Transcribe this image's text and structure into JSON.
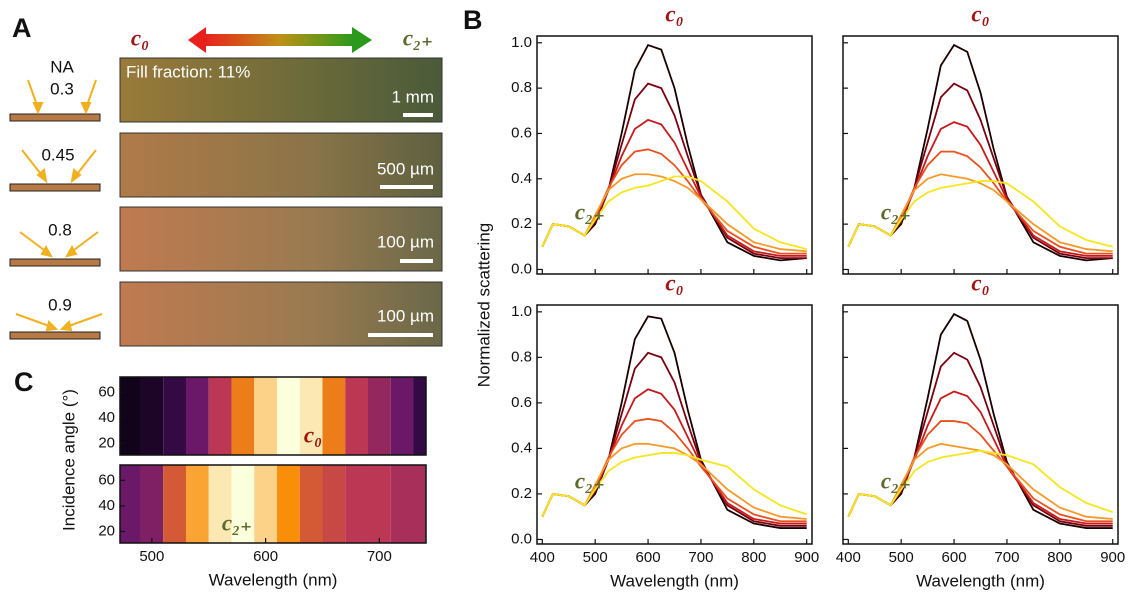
{
  "panel_labels": {
    "a": "A",
    "b": "B",
    "c": "C"
  },
  "panel_a": {
    "na_title": "NA",
    "na": [
      "0.3",
      "0.45",
      "0.8",
      "0.9"
    ],
    "left_label": "c₀",
    "right_label": "c₂₊",
    "fill_fraction": "Fill fraction: 11%",
    "scale_bars": [
      "1 mm",
      "500 µm",
      "100 µm",
      "100 µm"
    ]
  },
  "chart_data": [
    {
      "type": "line",
      "title": "c₀",
      "annotation": "c₂₊",
      "ylabel": "Normalized scattering",
      "x": [
        400,
        420,
        450,
        480,
        500,
        525,
        550,
        575,
        600,
        625,
        650,
        675,
        700,
        750,
        800,
        850,
        900
      ],
      "series": [
        {
          "color": "#1a0000",
          "values": [
            0.1,
            0.2,
            0.19,
            0.15,
            0.2,
            0.35,
            0.6,
            0.88,
            0.99,
            0.97,
            0.8,
            0.55,
            0.33,
            0.12,
            0.06,
            0.04,
            0.05
          ]
        },
        {
          "color": "#7a0010",
          "values": [
            0.1,
            0.2,
            0.19,
            0.15,
            0.21,
            0.35,
            0.55,
            0.75,
            0.82,
            0.8,
            0.68,
            0.5,
            0.33,
            0.14,
            0.07,
            0.05,
            0.05
          ]
        },
        {
          "color": "#c81a1a",
          "values": [
            0.1,
            0.2,
            0.19,
            0.15,
            0.22,
            0.35,
            0.5,
            0.62,
            0.66,
            0.64,
            0.56,
            0.44,
            0.32,
            0.15,
            0.08,
            0.06,
            0.06
          ]
        },
        {
          "color": "#e8501e",
          "values": [
            0.1,
            0.2,
            0.19,
            0.15,
            0.23,
            0.36,
            0.46,
            0.52,
            0.53,
            0.51,
            0.46,
            0.39,
            0.31,
            0.17,
            0.1,
            0.07,
            0.07
          ]
        },
        {
          "color": "#f59a2a",
          "values": [
            0.1,
            0.2,
            0.19,
            0.15,
            0.24,
            0.35,
            0.4,
            0.42,
            0.42,
            0.41,
            0.39,
            0.36,
            0.31,
            0.2,
            0.12,
            0.09,
            0.08
          ]
        },
        {
          "color": "#f5e61e",
          "values": [
            0.1,
            0.2,
            0.19,
            0.15,
            0.22,
            0.3,
            0.34,
            0.36,
            0.37,
            0.39,
            0.41,
            0.41,
            0.39,
            0.3,
            0.18,
            0.12,
            0.09
          ]
        }
      ],
      "xlim": [
        390,
        910
      ],
      "xticks": [
        400,
        500,
        600,
        700,
        800,
        900
      ],
      "ylim": [
        -0.02,
        1.03
      ],
      "yticks": [
        {
          "value": 0,
          "label": "0.0"
        },
        0.2,
        0.4,
        0.6,
        0.8,
        {
          "value": 1,
          "label": "1.0"
        }
      ]
    },
    {
      "type": "line",
      "title": "c₀",
      "annotation": "c₂₊",
      "x": [
        400,
        420,
        450,
        480,
        500,
        525,
        550,
        575,
        600,
        625,
        650,
        675,
        700,
        750,
        800,
        850,
        900
      ],
      "series": [
        {
          "color": "#1a0000",
          "values": [
            0.1,
            0.2,
            0.19,
            0.15,
            0.2,
            0.36,
            0.62,
            0.9,
            0.99,
            0.96,
            0.78,
            0.53,
            0.32,
            0.12,
            0.06,
            0.04,
            0.05
          ]
        },
        {
          "color": "#7a0010",
          "values": [
            0.1,
            0.2,
            0.19,
            0.15,
            0.21,
            0.36,
            0.56,
            0.76,
            0.82,
            0.79,
            0.66,
            0.49,
            0.32,
            0.14,
            0.07,
            0.05,
            0.05
          ]
        },
        {
          "color": "#c81a1a",
          "values": [
            0.1,
            0.2,
            0.19,
            0.15,
            0.22,
            0.35,
            0.5,
            0.62,
            0.65,
            0.63,
            0.55,
            0.43,
            0.31,
            0.15,
            0.08,
            0.06,
            0.06
          ]
        },
        {
          "color": "#e8501e",
          "values": [
            0.1,
            0.2,
            0.19,
            0.15,
            0.23,
            0.36,
            0.46,
            0.52,
            0.52,
            0.5,
            0.45,
            0.38,
            0.3,
            0.17,
            0.1,
            0.07,
            0.07
          ]
        },
        {
          "color": "#f59a2a",
          "values": [
            0.1,
            0.2,
            0.19,
            0.15,
            0.24,
            0.35,
            0.4,
            0.42,
            0.41,
            0.4,
            0.38,
            0.35,
            0.3,
            0.2,
            0.12,
            0.09,
            0.08
          ]
        },
        {
          "color": "#f5e61e",
          "values": [
            0.1,
            0.2,
            0.19,
            0.15,
            0.22,
            0.3,
            0.34,
            0.36,
            0.37,
            0.38,
            0.39,
            0.39,
            0.38,
            0.3,
            0.19,
            0.13,
            0.1
          ]
        }
      ],
      "xlim": [
        390,
        910
      ],
      "xticks": [
        400,
        500,
        600,
        700,
        800,
        900
      ],
      "ylim": [
        -0.02,
        1.03
      ],
      "yticks": [
        0,
        0.2,
        0.4,
        0.6,
        0.8,
        1
      ]
    },
    {
      "type": "line",
      "title": "c₀",
      "annotation": "c₂₊",
      "xlabel": "Wavelength (nm)",
      "x": [
        400,
        420,
        450,
        480,
        500,
        525,
        550,
        575,
        600,
        625,
        650,
        675,
        700,
        750,
        800,
        850,
        900
      ],
      "series": [
        {
          "color": "#1a0000",
          "values": [
            0.1,
            0.2,
            0.19,
            0.15,
            0.2,
            0.35,
            0.6,
            0.88,
            0.98,
            0.97,
            0.82,
            0.57,
            0.35,
            0.13,
            0.07,
            0.05,
            0.05
          ]
        },
        {
          "color": "#7a0010",
          "values": [
            0.1,
            0.2,
            0.19,
            0.15,
            0.21,
            0.35,
            0.55,
            0.75,
            0.82,
            0.8,
            0.69,
            0.51,
            0.34,
            0.15,
            0.08,
            0.06,
            0.06
          ]
        },
        {
          "color": "#c81a1a",
          "values": [
            0.1,
            0.2,
            0.19,
            0.15,
            0.22,
            0.35,
            0.5,
            0.62,
            0.66,
            0.64,
            0.57,
            0.45,
            0.33,
            0.16,
            0.09,
            0.07,
            0.07
          ]
        },
        {
          "color": "#e8501e",
          "values": [
            0.1,
            0.2,
            0.19,
            0.15,
            0.23,
            0.36,
            0.46,
            0.52,
            0.53,
            0.52,
            0.47,
            0.4,
            0.32,
            0.18,
            0.11,
            0.08,
            0.08
          ]
        },
        {
          "color": "#f59a2a",
          "values": [
            0.1,
            0.2,
            0.19,
            0.15,
            0.24,
            0.35,
            0.4,
            0.42,
            0.42,
            0.41,
            0.4,
            0.37,
            0.33,
            0.22,
            0.14,
            0.1,
            0.09
          ]
        },
        {
          "color": "#f5e61e",
          "values": [
            0.1,
            0.2,
            0.19,
            0.15,
            0.22,
            0.3,
            0.34,
            0.36,
            0.37,
            0.38,
            0.38,
            0.37,
            0.35,
            0.32,
            0.22,
            0.15,
            0.11
          ]
        }
      ],
      "xlim": [
        390,
        910
      ],
      "xticks": [
        400,
        500,
        600,
        700,
        800,
        900
      ],
      "ylim": [
        -0.02,
        1.03
      ],
      "yticks": [
        {
          "value": 0,
          "label": "0.0"
        },
        0.2,
        0.4,
        0.6,
        0.8,
        {
          "value": 1,
          "label": "1.0"
        }
      ]
    },
    {
      "type": "line",
      "title": "c₀",
      "annotation": "c₂₊",
      "xlabel": "Wavelength (nm)",
      "x": [
        400,
        420,
        450,
        480,
        500,
        525,
        550,
        575,
        600,
        625,
        650,
        675,
        700,
        750,
        800,
        850,
        900
      ],
      "series": [
        {
          "color": "#1a0000",
          "values": [
            0.1,
            0.2,
            0.19,
            0.15,
            0.2,
            0.36,
            0.62,
            0.9,
            0.99,
            0.96,
            0.79,
            0.55,
            0.34,
            0.13,
            0.07,
            0.05,
            0.05
          ]
        },
        {
          "color": "#7a0010",
          "values": [
            0.1,
            0.2,
            0.19,
            0.15,
            0.21,
            0.36,
            0.56,
            0.76,
            0.82,
            0.79,
            0.67,
            0.5,
            0.33,
            0.15,
            0.08,
            0.06,
            0.06
          ]
        },
        {
          "color": "#c81a1a",
          "values": [
            0.1,
            0.2,
            0.19,
            0.15,
            0.22,
            0.35,
            0.5,
            0.62,
            0.65,
            0.63,
            0.56,
            0.44,
            0.32,
            0.16,
            0.09,
            0.07,
            0.07
          ]
        },
        {
          "color": "#e8501e",
          "values": [
            0.1,
            0.2,
            0.19,
            0.15,
            0.23,
            0.36,
            0.46,
            0.52,
            0.52,
            0.51,
            0.46,
            0.39,
            0.32,
            0.18,
            0.11,
            0.08,
            0.08
          ]
        },
        {
          "color": "#f59a2a",
          "values": [
            0.1,
            0.2,
            0.19,
            0.15,
            0.24,
            0.35,
            0.4,
            0.42,
            0.41,
            0.4,
            0.39,
            0.37,
            0.33,
            0.22,
            0.14,
            0.1,
            0.09
          ]
        },
        {
          "color": "#f5e61e",
          "values": [
            0.1,
            0.2,
            0.19,
            0.15,
            0.22,
            0.3,
            0.34,
            0.36,
            0.37,
            0.38,
            0.39,
            0.38,
            0.37,
            0.33,
            0.23,
            0.16,
            0.12
          ]
        }
      ],
      "xlim": [
        390,
        910
      ],
      "xticks": [
        400,
        500,
        600,
        700,
        800,
        900
      ],
      "ylim": [
        -0.02,
        1.03
      ],
      "yticks": [
        0,
        0.2,
        0.4,
        0.6,
        0.8,
        1
      ]
    },
    {
      "type": "heatmap",
      "annotation": "c₀",
      "ylabel": "Incidence angle (°)",
      "x": [
        480,
        500,
        520,
        540,
        560,
        580,
        600,
        620,
        640,
        660,
        680,
        700,
        720,
        740
      ],
      "values": [
        0.05,
        0.08,
        0.15,
        0.3,
        0.5,
        0.7,
        0.9,
        1.0,
        0.95,
        0.7,
        0.5,
        0.4,
        0.3,
        0.15
      ],
      "xlim": [
        472,
        741
      ],
      "ylim": [
        11,
        72
      ],
      "yticks": [
        20,
        40,
        60
      ]
    },
    {
      "type": "heatmap",
      "annotation": "c₂₊",
      "xlabel": "Wavelength (nm)",
      "x": [
        480,
        500,
        520,
        540,
        560,
        580,
        600,
        620,
        640,
        660,
        680,
        700,
        720,
        740
      ],
      "values": [
        0.3,
        0.35,
        0.6,
        0.8,
        0.95,
        1.0,
        0.9,
        0.75,
        0.6,
        0.55,
        0.5,
        0.5,
        0.45,
        0.45
      ],
      "xlim": [
        472,
        741
      ],
      "xticks": [
        500,
        600,
        700
      ],
      "ylim": [
        11,
        72
      ],
      "yticks": [
        20,
        40,
        60
      ]
    }
  ]
}
